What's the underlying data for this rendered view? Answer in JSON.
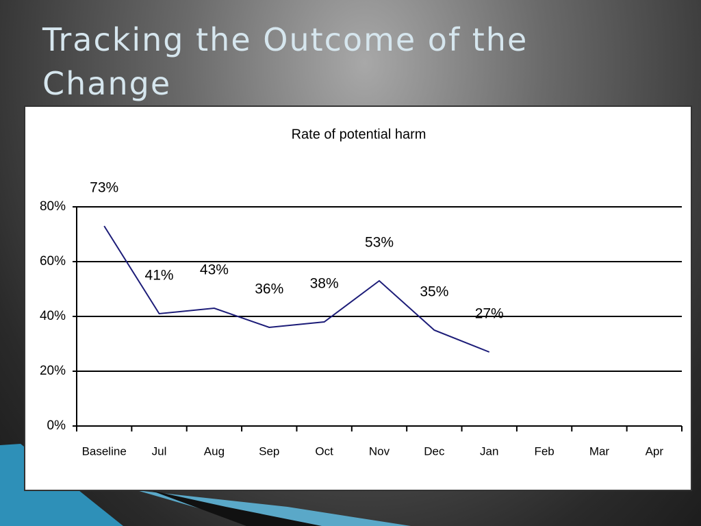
{
  "slide_title": "Tracking the Outcome of the Change",
  "chart_data": {
    "type": "line",
    "title": "Rate of potential harm",
    "categories": [
      "Baseline",
      "Jul",
      "Aug",
      "Sep",
      "Oct",
      "Nov",
      "Dec",
      "Jan",
      "Feb",
      "Mar",
      "Apr"
    ],
    "values": [
      73,
      41,
      43,
      36,
      38,
      53,
      35,
      27,
      null,
      null,
      null
    ],
    "value_labels": [
      "73%",
      "41%",
      "43%",
      "36%",
      "38%",
      "53%",
      "35%",
      "27%",
      null,
      null,
      null
    ],
    "color": "#1c1c78",
    "ylim": [
      0,
      80
    ],
    "yticks": [
      {
        "value": 0,
        "label": "0%"
      },
      {
        "value": 20,
        "label": "20%"
      },
      {
        "value": 40,
        "label": "40%"
      },
      {
        "value": 60,
        "label": "60%"
      },
      {
        "value": 80,
        "label": "80%"
      }
    ],
    "grid": true
  }
}
